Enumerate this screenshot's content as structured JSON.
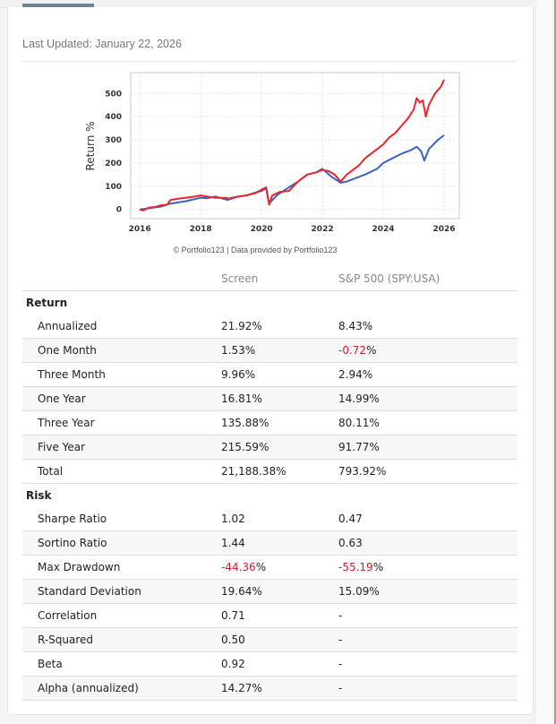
{
  "header": {
    "last_updated": "Last Updated: January 22, 2026"
  },
  "colors": {
    "screen": "#e8262b",
    "benchmark": "#3b62c4",
    "negative": "#c8202c",
    "tab_indicator": "#6e8596"
  },
  "chart_data": {
    "type": "line",
    "title": "",
    "xlabel": "",
    "ylabel": "Return %",
    "footer": "© Portfolio123 | Data provided by Portfolio123",
    "xlim": [
      2015.7,
      2026.5
    ],
    "ylim": [
      -40,
      590
    ],
    "x_ticks": [
      2016,
      2018,
      2020,
      2022,
      2024,
      2026
    ],
    "y_ticks": [
      0,
      100,
      200,
      300,
      400,
      500
    ],
    "grid": true,
    "legend": "none",
    "series": [
      {
        "name": "Screen",
        "color": "#e8262b",
        "x": [
          2016.0,
          2016.1,
          2016.3,
          2016.5,
          2016.7,
          2016.9,
          2017.0,
          2017.2,
          2017.5,
          2017.8,
          2018.0,
          2018.2,
          2018.5,
          2018.8,
          2019.0,
          2019.2,
          2019.5,
          2019.8,
          2020.0,
          2020.15,
          2020.25,
          2020.35,
          2020.6,
          2020.9,
          2021.2,
          2021.5,
          2021.8,
          2022.0,
          2022.2,
          2022.4,
          2022.6,
          2022.8,
          2023.0,
          2023.2,
          2023.4,
          2023.6,
          2023.8,
          2024.0,
          2024.2,
          2024.4,
          2024.6,
          2024.8,
          2025.0,
          2025.1,
          2025.2,
          2025.3,
          2025.4,
          2025.5,
          2025.7,
          2025.9,
          2026.0
        ],
        "y": [
          0,
          -5,
          8,
          10,
          18,
          20,
          40,
          45,
          50,
          55,
          60,
          55,
          50,
          50,
          45,
          55,
          60,
          70,
          85,
          95,
          20,
          60,
          75,
          80,
          120,
          150,
          160,
          170,
          165,
          150,
          120,
          150,
          170,
          190,
          220,
          240,
          260,
          280,
          310,
          330,
          360,
          390,
          430,
          480,
          460,
          470,
          400,
          450,
          500,
          530,
          560
        ]
      },
      {
        "name": "S&P 500 (SPY:USA)",
        "color": "#3b62c4",
        "x": [
          2016.0,
          2016.3,
          2016.7,
          2017.0,
          2017.5,
          2018.0,
          2018.2,
          2018.5,
          2018.9,
          2019.0,
          2019.5,
          2020.0,
          2020.15,
          2020.25,
          2020.5,
          2020.9,
          2021.2,
          2021.5,
          2021.8,
          2022.0,
          2022.3,
          2022.6,
          2022.8,
          2023.0,
          2023.4,
          2023.8,
          2024.0,
          2024.3,
          2024.6,
          2024.9,
          2025.1,
          2025.25,
          2025.35,
          2025.5,
          2025.8,
          2026.0
        ],
        "y": [
          0,
          5,
          12,
          25,
          35,
          50,
          48,
          55,
          40,
          50,
          60,
          80,
          90,
          25,
          60,
          95,
          120,
          150,
          160,
          175,
          140,
          115,
          120,
          130,
          150,
          175,
          200,
          220,
          240,
          255,
          270,
          250,
          210,
          260,
          300,
          320
        ]
      }
    ]
  },
  "table": {
    "headers": [
      "",
      "Screen",
      "S&P 500 (SPY:USA)"
    ],
    "sections": [
      {
        "title": "Return",
        "rows": [
          {
            "label": "Annualized",
            "screen": "21.92%",
            "benchmark": "8.43%"
          },
          {
            "label": "One Month",
            "screen": "1.53%",
            "benchmark": "-0.72%"
          },
          {
            "label": "Three Month",
            "screen": "9.96%",
            "benchmark": "2.94%"
          },
          {
            "label": "One Year",
            "screen": "16.81%",
            "benchmark": "14.99%"
          },
          {
            "label": "Three Year",
            "screen": "135.88%",
            "benchmark": "80.11%"
          },
          {
            "label": "Five Year",
            "screen": "215.59%",
            "benchmark": "91.77%"
          },
          {
            "label": "Total",
            "screen": "21,188.38%",
            "benchmark": "793.92%"
          }
        ]
      },
      {
        "title": "Risk",
        "rows": [
          {
            "label": "Sharpe Ratio",
            "screen": "1.02",
            "benchmark": "0.47"
          },
          {
            "label": "Sortino Ratio",
            "screen": "1.44",
            "benchmark": "0.63"
          },
          {
            "label": "Max Drawdown",
            "screen": "-44.36%",
            "benchmark": "-55.19%"
          },
          {
            "label": "Standard Deviation",
            "screen": "19.64%",
            "benchmark": "15.09%"
          },
          {
            "label": "Correlation",
            "screen": "0.71",
            "benchmark": "-"
          },
          {
            "label": "R-Squared",
            "screen": "0.50",
            "benchmark": "-"
          },
          {
            "label": "Beta",
            "screen": "0.92",
            "benchmark": "-"
          },
          {
            "label": "Alpha (annualized)",
            "screen": "14.27%",
            "benchmark": "-"
          }
        ]
      }
    ]
  }
}
